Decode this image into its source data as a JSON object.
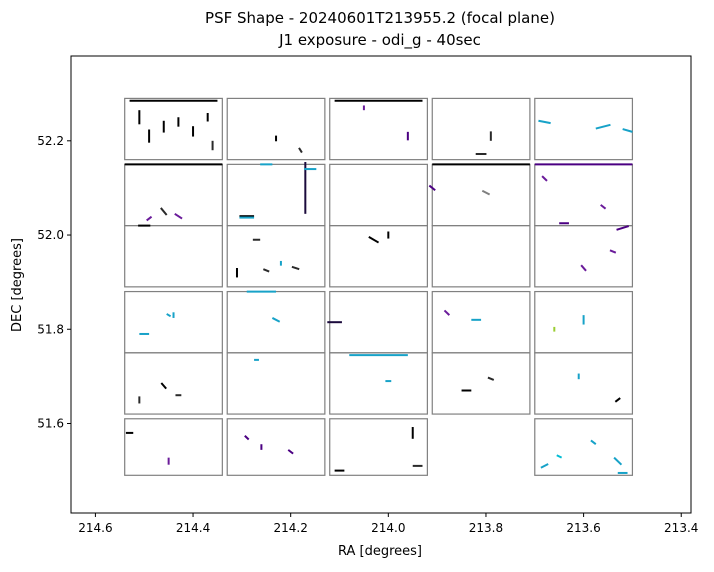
{
  "chart_data": {
    "type": "scatter",
    "title": "PSF Shape - 20240601T213955.2 (focal plane)",
    "subtitle": "J1 exposure - odi_g - 40sec",
    "xlabel": "RA [degrees]",
    "ylabel": "DEC [degrees]",
    "xlim": [
      214.65,
      213.38
    ],
    "ylim": [
      51.41,
      52.38
    ],
    "x_inverted": true,
    "xticks": [
      214.6,
      214.4,
      214.2,
      214.0,
      213.8,
      213.6,
      213.4
    ],
    "xtick_labels": [
      "214.6",
      "214.4",
      "214.2",
      "214.0",
      "213.8",
      "213.6",
      "213.4"
    ],
    "yticks": [
      51.6,
      51.8,
      52.0,
      52.2
    ],
    "ytick_labels": [
      "51.6",
      "51.8",
      "52.0",
      "52.2"
    ],
    "grid": false,
    "legend": "none",
    "colors": {
      "chip_outline": "#808080",
      "whisker_palette": [
        "#000000",
        "#2a2a2a",
        "#4b0082",
        "#6a1b9a",
        "#1e90ff",
        "#17a2c8",
        "#00bcd4",
        "#9acd32",
        "#ffd700",
        "#7f7f7f"
      ]
    },
    "chips": [
      {
        "ra_min": 214.34,
        "ra_max": 214.54,
        "dec_min": 52.16,
        "dec_max": 52.29
      },
      {
        "ra_min": 214.13,
        "ra_max": 214.33,
        "dec_min": 52.16,
        "dec_max": 52.29
      },
      {
        "ra_min": 213.92,
        "ra_max": 214.12,
        "dec_min": 52.16,
        "dec_max": 52.29
      },
      {
        "ra_min": 213.71,
        "ra_max": 213.91,
        "dec_min": 52.16,
        "dec_max": 52.29
      },
      {
        "ra_min": 213.5,
        "ra_max": 213.7,
        "dec_min": 52.16,
        "dec_max": 52.29
      },
      {
        "ra_min": 214.34,
        "ra_max": 214.54,
        "dec_min": 52.02,
        "dec_max": 52.15
      },
      {
        "ra_min": 214.13,
        "ra_max": 214.33,
        "dec_min": 52.02,
        "dec_max": 52.15
      },
      {
        "ra_min": 213.92,
        "ra_max": 214.12,
        "dec_min": 52.02,
        "dec_max": 52.15
      },
      {
        "ra_min": 213.71,
        "ra_max": 213.91,
        "dec_min": 52.02,
        "dec_max": 52.15
      },
      {
        "ra_min": 213.5,
        "ra_max": 213.7,
        "dec_min": 52.02,
        "dec_max": 52.15
      },
      {
        "ra_min": 214.34,
        "ra_max": 214.54,
        "dec_min": 51.89,
        "dec_max": 52.02
      },
      {
        "ra_min": 214.13,
        "ra_max": 214.33,
        "dec_min": 51.89,
        "dec_max": 52.02
      },
      {
        "ra_min": 213.92,
        "ra_max": 214.12,
        "dec_min": 51.89,
        "dec_max": 52.02
      },
      {
        "ra_min": 213.71,
        "ra_max": 213.91,
        "dec_min": 51.89,
        "dec_max": 52.02
      },
      {
        "ra_min": 213.5,
        "ra_max": 213.7,
        "dec_min": 51.89,
        "dec_max": 52.02
      },
      {
        "ra_min": 214.34,
        "ra_max": 214.54,
        "dec_min": 51.75,
        "dec_max": 51.88
      },
      {
        "ra_min": 214.13,
        "ra_max": 214.33,
        "dec_min": 51.75,
        "dec_max": 51.88
      },
      {
        "ra_min": 213.92,
        "ra_max": 214.12,
        "dec_min": 51.75,
        "dec_max": 51.88
      },
      {
        "ra_min": 213.71,
        "ra_max": 213.91,
        "dec_min": 51.75,
        "dec_max": 51.88
      },
      {
        "ra_min": 213.5,
        "ra_max": 213.7,
        "dec_min": 51.75,
        "dec_max": 51.88
      },
      {
        "ra_min": 214.34,
        "ra_max": 214.54,
        "dec_min": 51.62,
        "dec_max": 51.75
      },
      {
        "ra_min": 214.13,
        "ra_max": 214.33,
        "dec_min": 51.62,
        "dec_max": 51.75
      },
      {
        "ra_min": 213.92,
        "ra_max": 214.12,
        "dec_min": 51.62,
        "dec_max": 51.75
      },
      {
        "ra_min": 213.71,
        "ra_max": 213.91,
        "dec_min": 51.62,
        "dec_max": 51.75
      },
      {
        "ra_min": 213.5,
        "ra_max": 213.7,
        "dec_min": 51.62,
        "dec_max": 51.75
      },
      {
        "ra_min": 214.34,
        "ra_max": 214.54,
        "dec_min": 51.49,
        "dec_max": 51.61
      },
      {
        "ra_min": 214.13,
        "ra_max": 214.33,
        "dec_min": 51.49,
        "dec_max": 51.61
      },
      {
        "ra_min": 213.92,
        "ra_max": 214.12,
        "dec_min": 51.49,
        "dec_max": 51.61
      },
      {
        "ra_min": 213.5,
        "ra_max": 213.7,
        "dec_min": 51.49,
        "dec_max": 51.61
      }
    ],
    "whiskers": [
      {
        "ra": 214.51,
        "dec": 52.25,
        "dra": 0.0,
        "ddec": 0.03,
        "color": "#000000"
      },
      {
        "ra": 214.49,
        "dec": 52.21,
        "dra": 0.0,
        "ddec": 0.028,
        "color": "#000000"
      },
      {
        "ra": 214.46,
        "dec": 52.23,
        "dra": 0.0,
        "ddec": 0.025,
        "color": "#000000"
      },
      {
        "ra": 214.43,
        "dec": 52.24,
        "dra": 0.0,
        "ddec": 0.02,
        "color": "#000000"
      },
      {
        "ra": 214.4,
        "dec": 52.22,
        "dra": 0.0,
        "ddec": 0.022,
        "color": "#000000"
      },
      {
        "ra": 214.37,
        "dec": 52.25,
        "dra": 0.0,
        "ddec": 0.018,
        "color": "#000000"
      },
      {
        "ra": 214.36,
        "dec": 52.19,
        "dra": 0.0,
        "ddec": 0.02,
        "color": "#2a2a2a"
      },
      {
        "ra": 214.44,
        "dec": 52.285,
        "dra": 0.18,
        "ddec": 0.0,
        "color": "#000000"
      },
      {
        "ra": 214.02,
        "dec": 52.285,
        "dra": 0.18,
        "ddec": 0.0,
        "color": "#000000"
      },
      {
        "ra": 214.23,
        "dec": 52.205,
        "dra": 0.0,
        "ddec": 0.012,
        "color": "#000000"
      },
      {
        "ra": 214.18,
        "dec": 52.18,
        "dra": 0.006,
        "ddec": 0.01,
        "color": "#2a2a2a"
      },
      {
        "ra": 214.05,
        "dec": 52.27,
        "dra": 0.0,
        "ddec": 0.01,
        "color": "#6a1b9a"
      },
      {
        "ra": 213.96,
        "dec": 52.21,
        "dra": 0.0,
        "ddec": 0.018,
        "color": "#4b0082"
      },
      {
        "ra": 213.79,
        "dec": 52.21,
        "dra": 0.0,
        "ddec": 0.02,
        "color": "#2a2a2a"
      },
      {
        "ra": 213.81,
        "dec": 52.172,
        "dra": 0.022,
        "ddec": 0.0,
        "color": "#2a2a2a"
      },
      {
        "ra": 213.68,
        "dec": 52.24,
        "dra": 0.025,
        "ddec": 0.005,
        "color": "#17a2c8"
      },
      {
        "ra": 213.56,
        "dec": 52.23,
        "dra": 0.03,
        "ddec": -0.008,
        "color": "#17a2c8"
      },
      {
        "ra": 213.51,
        "dec": 52.222,
        "dra": 0.02,
        "ddec": 0.006,
        "color": "#17a2c8"
      },
      {
        "ra": 214.44,
        "dec": 52.15,
        "dra": 0.2,
        "ddec": 0.0,
        "color": "#000000"
      },
      {
        "ra": 214.25,
        "dec": 52.15,
        "dra": 0.025,
        "ddec": 0.0,
        "color": "#17a2c8"
      },
      {
        "ra": 214.17,
        "dec": 52.1,
        "dra": 0.0,
        "ddec": 0.11,
        "color": "#1b0a3c"
      },
      {
        "ra": 214.16,
        "dec": 52.14,
        "dra": 0.025,
        "ddec": 0.0,
        "color": "#17a2c8"
      },
      {
        "ra": 214.29,
        "dec": 52.04,
        "dra": 0.03,
        "ddec": 0.0,
        "color": "#000000"
      },
      {
        "ra": 214.29,
        "dec": 52.037,
        "dra": 0.03,
        "ddec": 0.0,
        "color": "#17a2c8"
      },
      {
        "ra": 214.43,
        "dec": 52.04,
        "dra": 0.015,
        "ddec": 0.01,
        "color": "#6a1b9a"
      },
      {
        "ra": 214.46,
        "dec": 52.05,
        "dra": 0.012,
        "ddec": 0.015,
        "color": "#2a2a2a"
      },
      {
        "ra": 214.49,
        "dec": 52.035,
        "dra": 0.01,
        "ddec": -0.008,
        "color": "#6a1b9a"
      },
      {
        "ra": 213.81,
        "dec": 52.15,
        "dra": 0.2,
        "ddec": 0.0,
        "color": "#000000"
      },
      {
        "ra": 213.6,
        "dec": 52.15,
        "dra": 0.2,
        "ddec": 0.0,
        "color": "#4b0082"
      },
      {
        "ra": 213.91,
        "dec": 52.1,
        "dra": 0.012,
        "ddec": 0.01,
        "color": "#4b0082"
      },
      {
        "ra": 213.8,
        "dec": 52.09,
        "dra": 0.015,
        "ddec": 0.008,
        "color": "#7f7f7f"
      },
      {
        "ra": 213.68,
        "dec": 52.12,
        "dra": 0.01,
        "ddec": 0.01,
        "color": "#6a1b9a"
      },
      {
        "ra": 213.56,
        "dec": 52.06,
        "dra": 0.01,
        "ddec": 0.008,
        "color": "#6a1b9a"
      },
      {
        "ra": 213.52,
        "dec": 52.015,
        "dra": 0.025,
        "ddec": -0.008,
        "color": "#4b0082"
      },
      {
        "ra": 213.64,
        "dec": 52.025,
        "dra": 0.02,
        "ddec": 0.0,
        "color": "#4b0082"
      },
      {
        "ra": 214.5,
        "dec": 52.02,
        "dra": 0.025,
        "ddec": 0.0,
        "color": "#000000"
      },
      {
        "ra": 214.27,
        "dec": 51.99,
        "dra": 0.015,
        "ddec": 0.0,
        "color": "#2a2a2a"
      },
      {
        "ra": 214.25,
        "dec": 51.925,
        "dra": 0.012,
        "ddec": 0.005,
        "color": "#2a2a2a"
      },
      {
        "ra": 214.31,
        "dec": 51.92,
        "dra": 0.0,
        "ddec": 0.02,
        "color": "#000000"
      },
      {
        "ra": 214.19,
        "dec": 51.93,
        "dra": 0.015,
        "ddec": 0.005,
        "color": "#2a2a2a"
      },
      {
        "ra": 214.22,
        "dec": 51.94,
        "dra": 0.0,
        "ddec": 0.01,
        "color": "#17a2c8"
      },
      {
        "ra": 214.03,
        "dec": 51.99,
        "dra": 0.02,
        "ddec": 0.012,
        "color": "#000000"
      },
      {
        "ra": 214.0,
        "dec": 52.0,
        "dra": 0.0,
        "ddec": 0.015,
        "color": "#000000"
      },
      {
        "ra": 213.6,
        "dec": 51.93,
        "dra": 0.01,
        "ddec": 0.012,
        "color": "#6a1b9a"
      },
      {
        "ra": 213.54,
        "dec": 51.965,
        "dra": 0.012,
        "ddec": 0.005,
        "color": "#6a1b9a"
      },
      {
        "ra": 214.45,
        "dec": 51.83,
        "dra": 0.008,
        "ddec": 0.005,
        "color": "#17a2c8"
      },
      {
        "ra": 214.5,
        "dec": 51.79,
        "dra": 0.02,
        "ddec": 0.0,
        "color": "#17a2c8"
      },
      {
        "ra": 214.44,
        "dec": 51.83,
        "dra": 0.0,
        "ddec": 0.012,
        "color": "#17a2c8"
      },
      {
        "ra": 214.26,
        "dec": 51.88,
        "dra": 0.06,
        "ddec": 0.0,
        "color": "#17a2c8"
      },
      {
        "ra": 214.23,
        "dec": 51.82,
        "dra": 0.015,
        "ddec": 0.008,
        "color": "#17a2c8"
      },
      {
        "ra": 214.11,
        "dec": 51.815,
        "dra": 0.03,
        "ddec": 0.0,
        "color": "#1b0a3c"
      },
      {
        "ra": 213.88,
        "dec": 51.835,
        "dra": 0.01,
        "ddec": 0.01,
        "color": "#6a1b9a"
      },
      {
        "ra": 213.82,
        "dec": 51.82,
        "dra": 0.02,
        "ddec": 0.0,
        "color": "#17a2c8"
      },
      {
        "ra": 213.6,
        "dec": 51.82,
        "dra": 0.0,
        "ddec": 0.02,
        "color": "#17a2c8"
      },
      {
        "ra": 213.66,
        "dec": 51.8,
        "dra": 0.0,
        "ddec": 0.01,
        "color": "#9acd32"
      },
      {
        "ra": 214.02,
        "dec": 51.745,
        "dra": 0.12,
        "ddec": 0.0,
        "color": "#17a2c8"
      },
      {
        "ra": 214.27,
        "dec": 51.735,
        "dra": 0.01,
        "ddec": 0.0,
        "color": "#17a2c8"
      },
      {
        "ra": 214.46,
        "dec": 51.68,
        "dra": 0.01,
        "ddec": 0.012,
        "color": "#000000"
      },
      {
        "ra": 214.43,
        "dec": 51.66,
        "dra": 0.012,
        "ddec": 0.0,
        "color": "#2a2a2a"
      },
      {
        "ra": 214.51,
        "dec": 51.65,
        "dra": 0.0,
        "ddec": 0.015,
        "color": "#2a2a2a"
      },
      {
        "ra": 214.0,
        "dec": 51.69,
        "dra": 0.012,
        "ddec": 0.0,
        "color": "#17a2c8"
      },
      {
        "ra": 213.84,
        "dec": 51.67,
        "dra": 0.02,
        "ddec": 0.0,
        "color": "#000000"
      },
      {
        "ra": 213.79,
        "dec": 51.695,
        "dra": 0.012,
        "ddec": 0.005,
        "color": "#2a2a2a"
      },
      {
        "ra": 213.53,
        "dec": 51.65,
        "dra": 0.01,
        "ddec": -0.008,
        "color": "#000000"
      },
      {
        "ra": 213.61,
        "dec": 51.7,
        "dra": 0.0,
        "ddec": 0.012,
        "color": "#17a2c8"
      },
      {
        "ra": 214.53,
        "dec": 51.58,
        "dra": 0.015,
        "ddec": 0.0,
        "color": "#000000"
      },
      {
        "ra": 214.45,
        "dec": 51.52,
        "dra": 0.0,
        "ddec": 0.015,
        "color": "#6a1b9a"
      },
      {
        "ra": 214.29,
        "dec": 51.57,
        "dra": 0.008,
        "ddec": 0.008,
        "color": "#4b0082"
      },
      {
        "ra": 214.26,
        "dec": 51.55,
        "dra": 0.0,
        "ddec": 0.012,
        "color": "#4b0082"
      },
      {
        "ra": 214.2,
        "dec": 51.54,
        "dra": 0.01,
        "ddec": 0.008,
        "color": "#4b0082"
      },
      {
        "ra": 214.1,
        "dec": 51.5,
        "dra": 0.02,
        "ddec": 0.0,
        "color": "#000000"
      },
      {
        "ra": 213.95,
        "dec": 51.58,
        "dra": 0.0,
        "ddec": 0.025,
        "color": "#000000"
      },
      {
        "ra": 213.94,
        "dec": 51.51,
        "dra": 0.02,
        "ddec": 0.0,
        "color": "#2a2a2a"
      },
      {
        "ra": 213.68,
        "dec": 51.51,
        "dra": 0.015,
        "ddec": -0.008,
        "color": "#17a2c8"
      },
      {
        "ra": 213.58,
        "dec": 51.56,
        "dra": 0.01,
        "ddec": 0.008,
        "color": "#17a2c8"
      },
      {
        "ra": 213.53,
        "dec": 51.52,
        "dra": 0.015,
        "ddec": 0.015,
        "color": "#17a2c8"
      },
      {
        "ra": 213.52,
        "dec": 51.495,
        "dra": 0.02,
        "ddec": 0.0,
        "color": "#17a2c8"
      },
      {
        "ra": 213.65,
        "dec": 51.53,
        "dra": 0.01,
        "ddec": 0.005,
        "color": "#00bcd4"
      }
    ]
  }
}
